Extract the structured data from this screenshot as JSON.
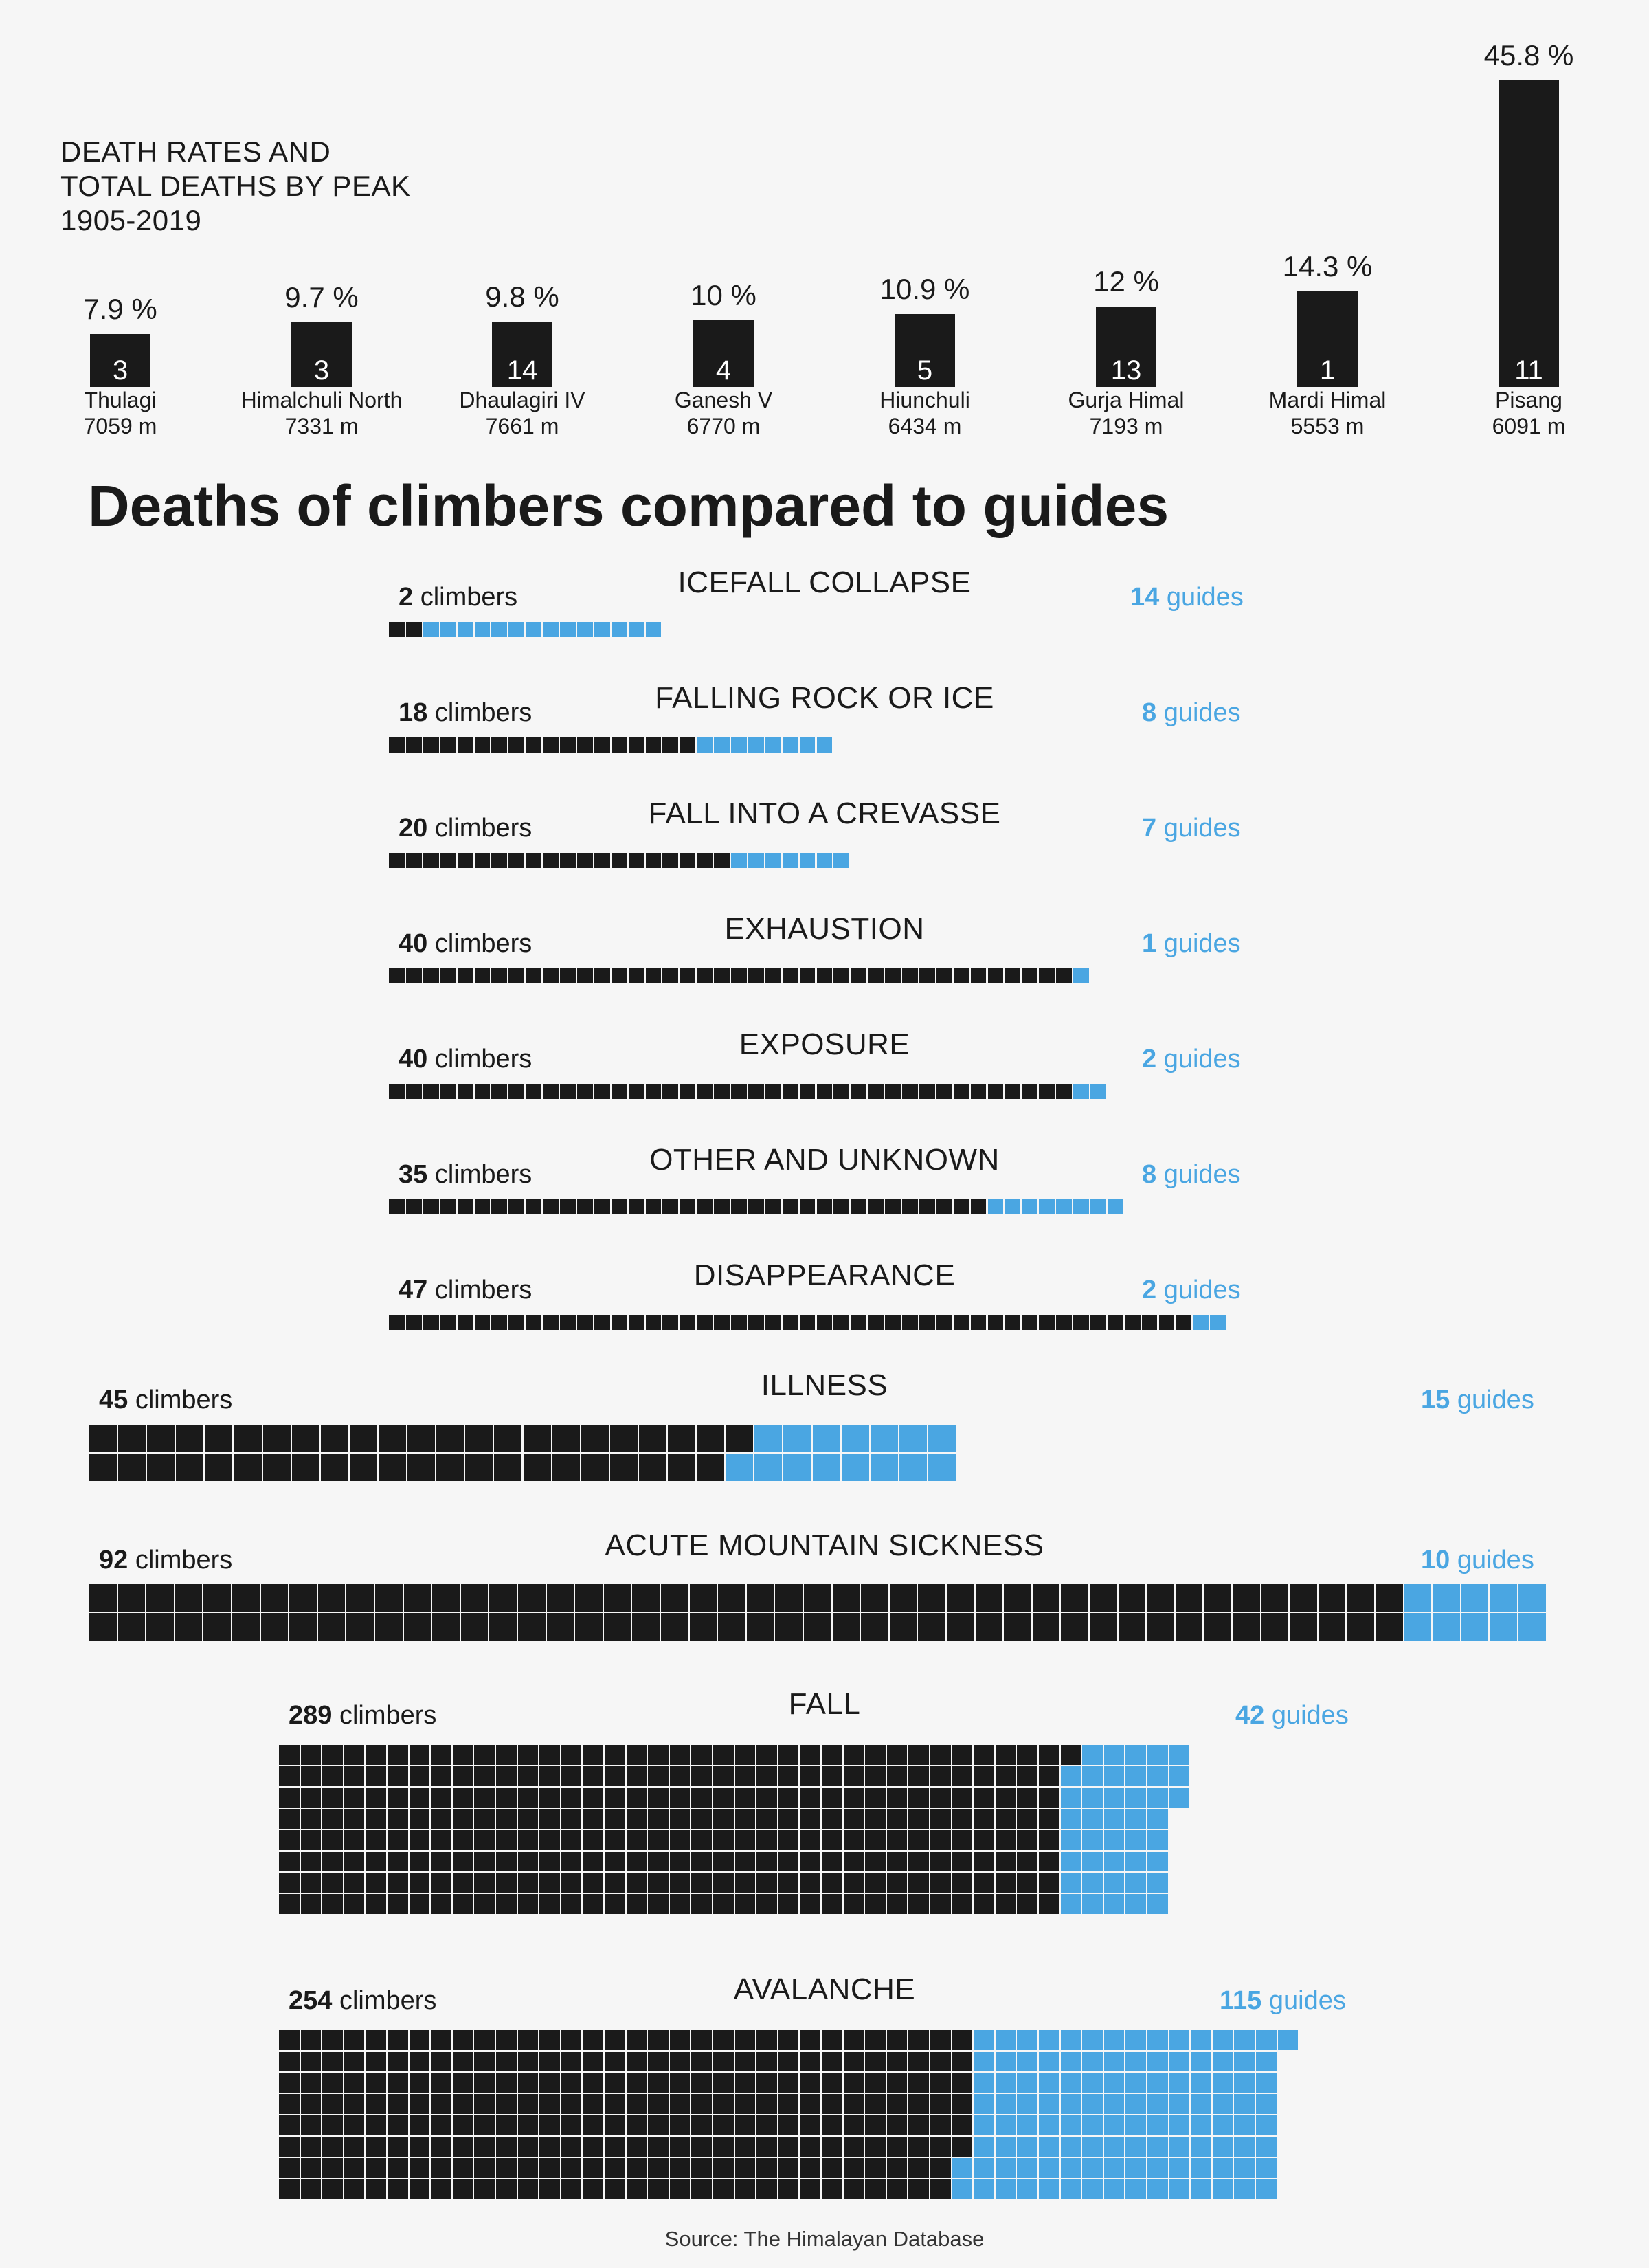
{
  "colors": {
    "climber": "#1a1a1a",
    "guide": "#4aa6e2",
    "background": "#f6f6f6",
    "grid_line": "#ffffff"
  },
  "header": {
    "subtitle_line1": "DEATH RATES AND",
    "subtitle_line2": "TOTAL DEATHS BY PEAK",
    "subtitle_line3": "1905-2019"
  },
  "main_title": "Deaths of climbers compared to guides",
  "source": "Source: The Himalayan Database",
  "labels": {
    "climbers_suffix": " climbers",
    "guides_suffix": " guides"
  },
  "chart_data": [
    {
      "type": "bar",
      "title": "DEATH RATES AND TOTAL DEATHS BY PEAK 1905-2019",
      "categories": [
        "Thulagi",
        "Himalchuli North",
        "Dhaulagiri IV",
        "Ganesh V",
        "Hiunchuli",
        "Gurja Himal",
        "Mardi Himal",
        "Pisang"
      ],
      "elevations": [
        "7059 m",
        "7331 m",
        "7661 m",
        "6770 m",
        "6434 m",
        "7193 m",
        "5553 m",
        "6091 m"
      ],
      "death_rate_labels": [
        "7.9 %",
        "9.7 %",
        "9.8 %",
        "10 %",
        "10.9 %",
        "12 %",
        "14.3 %",
        "45.8 %"
      ],
      "death_rate_percent": [
        7.9,
        9.7,
        9.8,
        10,
        10.9,
        12,
        14.3,
        45.8
      ],
      "total_deaths": [
        3,
        3,
        14,
        4,
        5,
        13,
        1,
        11
      ]
    },
    {
      "type": "bar",
      "title": "Deaths of climbers compared to guides",
      "categories": [
        "ICEFALL COLLAPSE",
        "FALLING ROCK OR ICE",
        "FALL INTO A CREVASSE",
        "EXHAUSTION",
        "EXPOSURE",
        "OTHER AND UNKNOWN",
        "DISAPPEARANCE",
        "ILLNESS",
        "ACUTE MOUNTAIN SICKNESS",
        "FALL",
        "AVALANCHE"
      ],
      "series": [
        {
          "name": "climbers",
          "values": [
            2,
            18,
            20,
            40,
            40,
            35,
            47,
            45,
            92,
            289,
            254
          ]
        },
        {
          "name": "guides",
          "values": [
            14,
            8,
            7,
            1,
            2,
            8,
            2,
            15,
            10,
            42,
            115
          ]
        }
      ]
    }
  ]
}
